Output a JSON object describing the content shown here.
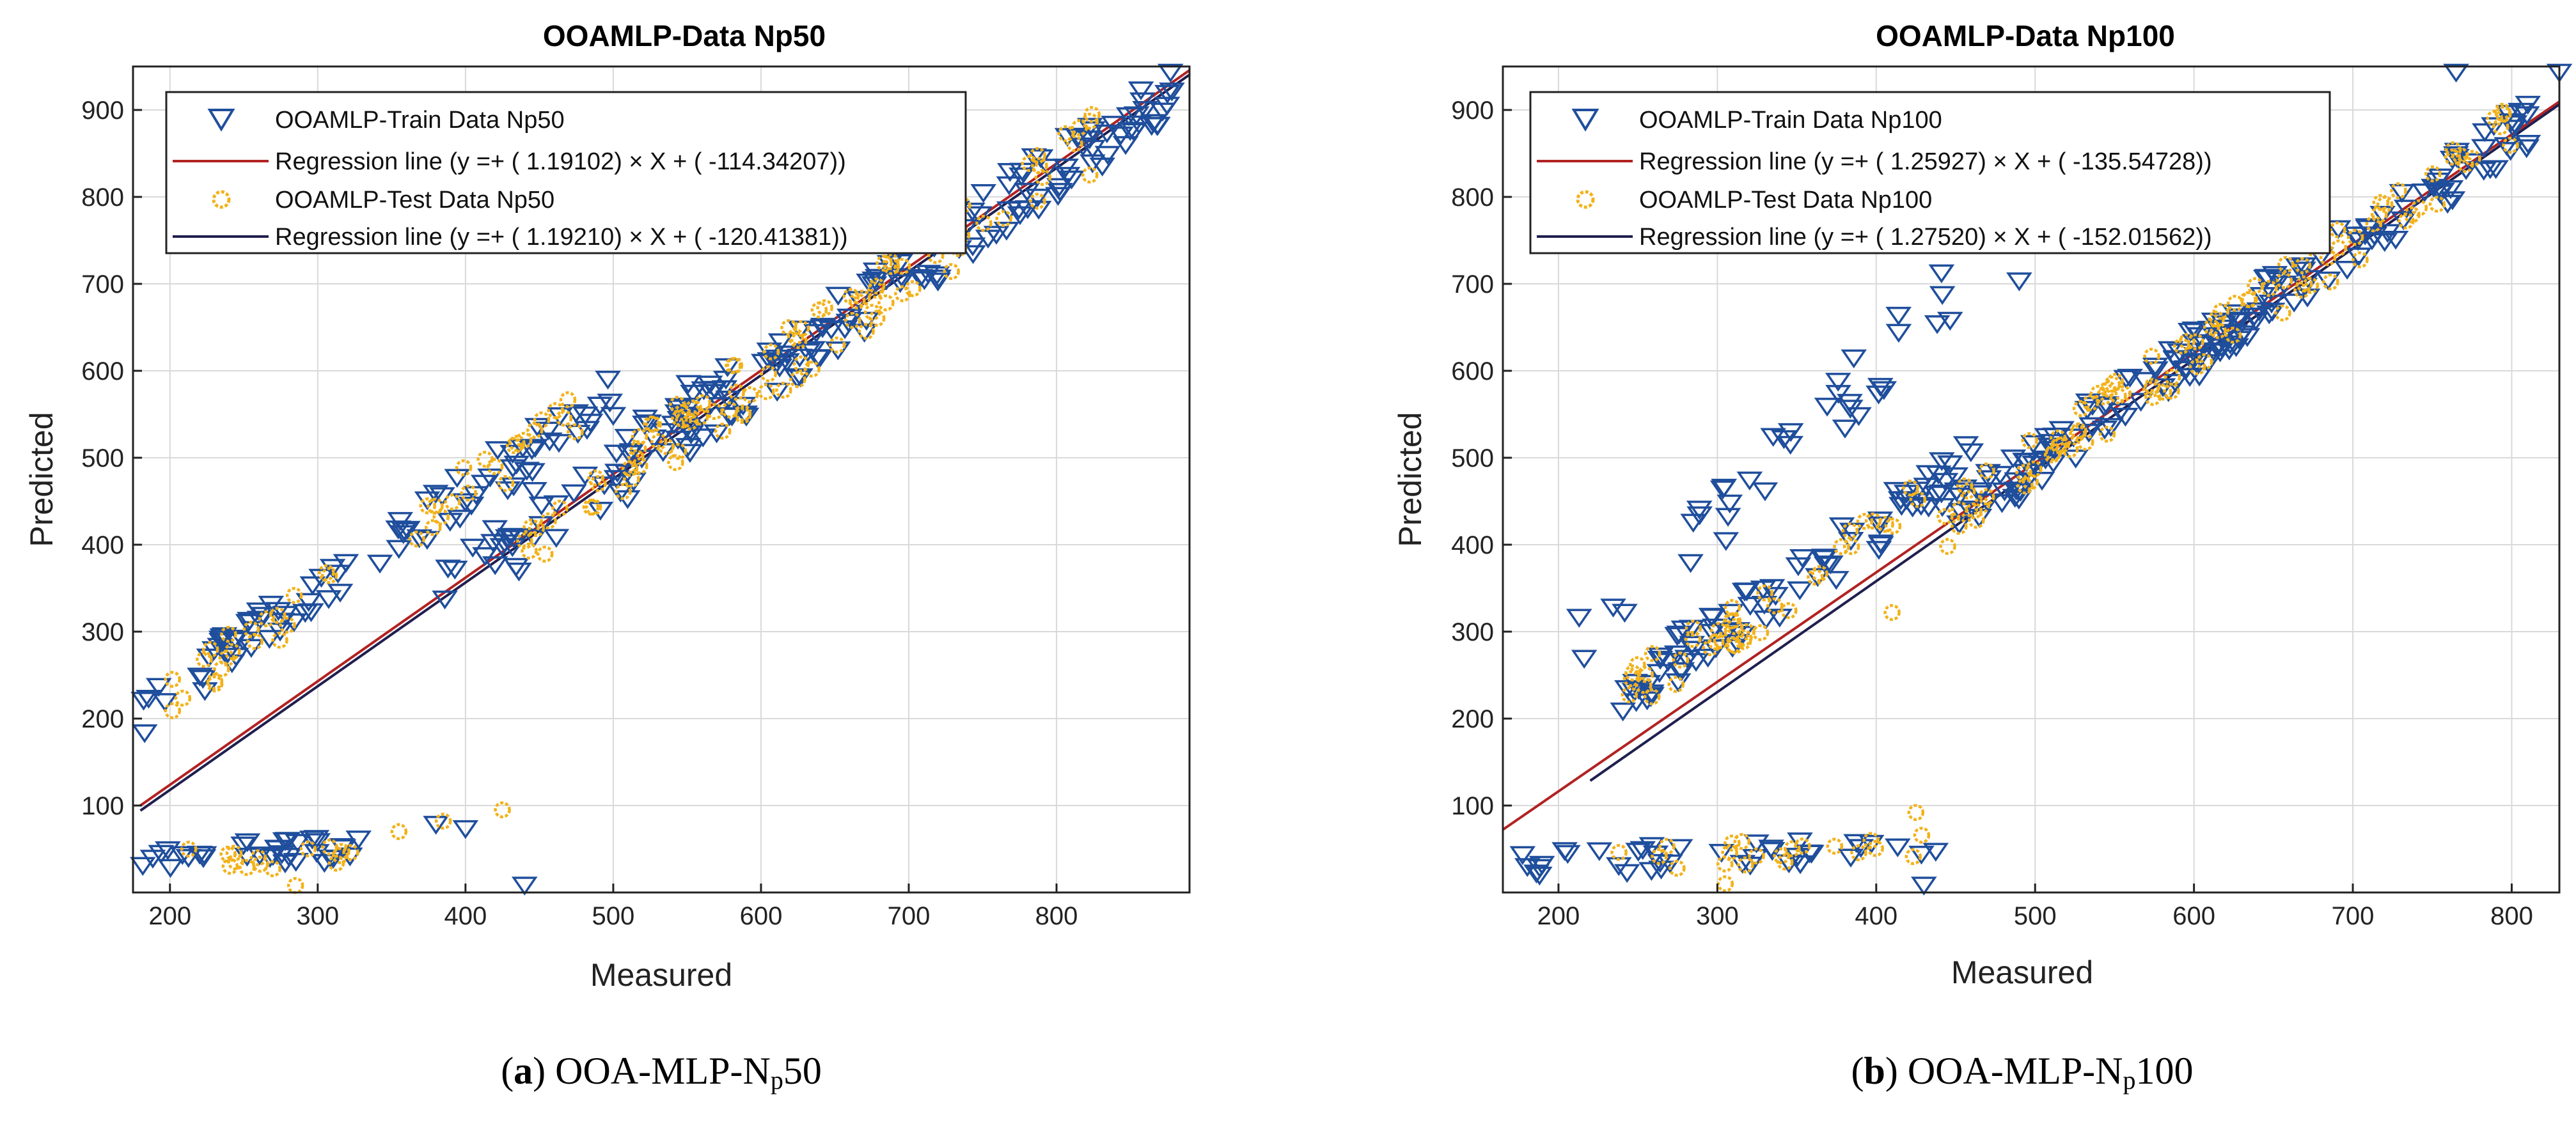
{
  "colors": {
    "train": "#1f4e9c",
    "test": "#f2b21b",
    "reg_train": "#b22222",
    "reg_test": "#1f1f4f",
    "grid": "#d9d9d9"
  },
  "captions": [
    {
      "tag": "a",
      "pre": " OOA-MLP-N",
      "sub": "p",
      "post": "50"
    },
    {
      "tag": "b",
      "pre": " OOA-MLP-N",
      "sub": "p",
      "post": "100"
    }
  ],
  "chart_data": [
    {
      "type": "scatter",
      "title": "OOAMLP-Data Np50",
      "xlabel": "Measured",
      "ylabel": "Predicted",
      "xlim": [
        175,
        890
      ],
      "ylim": [
        0,
        950
      ],
      "xticks": [
        200,
        300,
        400,
        500,
        600,
        700,
        800
      ],
      "yticks": [
        100,
        200,
        300,
        400,
        500,
        600,
        700,
        800,
        900
      ],
      "grid": true,
      "legend_position": "top-left",
      "legend": [
        "OOAMLP-Train Data Np50",
        "Regression line (y =+ ( 1.19102) × X + ( -114.34207))",
        "OOAMLP-Test Data Np50",
        "Regression line (y =+ ( 1.19210) × X + ( -120.41381))"
      ],
      "regression": [
        {
          "slope": 1.19102,
          "intercept": -114.34207,
          "x_range": [
            180,
            890
          ]
        },
        {
          "slope": 1.1921,
          "intercept": -120.41381,
          "x_range": [
            180,
            890
          ]
        }
      ],
      "clusters": {
        "train": [
          {
            "x0": 180,
            "x1": 320,
            "slope": 1.2,
            "intercept": -10,
            "n": 45,
            "spread": 25
          },
          {
            "x0": 340,
            "x1": 500,
            "slope": 1.2,
            "intercept": -20,
            "n": 45,
            "spread": 30
          },
          {
            "x0": 360,
            "x1": 580,
            "slope": 1.2,
            "intercept": -100,
            "n": 30,
            "spread": 30
          },
          {
            "x0": 420,
            "x1": 880,
            "slope": 1.19,
            "intercept": -118,
            "n": 160,
            "spread": 35
          },
          {
            "x0": 180,
            "x1": 330,
            "slope": 0.1,
            "intercept": 20,
            "n": 35,
            "spread": 15
          }
        ],
        "test": [
          {
            "x0": 190,
            "x1": 320,
            "slope": 1.2,
            "intercept": -15,
            "n": 20,
            "spread": 25
          },
          {
            "x0": 360,
            "x1": 480,
            "slope": 1.2,
            "intercept": -20,
            "n": 20,
            "spread": 30
          },
          {
            "x0": 440,
            "x1": 830,
            "slope": 1.19,
            "intercept": -120,
            "n": 90,
            "spread": 35
          },
          {
            "x0": 190,
            "x1": 330,
            "slope": 0.1,
            "intercept": 15,
            "n": 15,
            "spread": 15
          }
        ]
      },
      "points_train": [
        [
          380,
          80
        ],
        [
          400,
          75
        ],
        [
          440,
          10
        ],
        [
          300,
          60
        ]
      ],
      "points_test": [
        [
          355,
          70
        ],
        [
          385,
          82
        ],
        [
          425,
          95
        ],
        [
          285,
          8
        ]
      ]
    },
    {
      "type": "scatter",
      "title": "OOAMLP-Data Np100",
      "xlabel": "Measured",
      "ylabel": "Predicted",
      "xlim": [
        165,
        830
      ],
      "ylim": [
        0,
        950
      ],
      "xticks": [
        200,
        300,
        400,
        500,
        600,
        700,
        800
      ],
      "yticks": [
        100,
        200,
        300,
        400,
        500,
        600,
        700,
        800,
        900
      ],
      "grid": true,
      "legend_position": "top-left",
      "legend": [
        "OOAMLP-Train Data Np100",
        "Regression line (y =+ ( 1.25927) × X + ( -135.54728))",
        "OOAMLP-Test Data Np100",
        "Regression line (y =+ ( 1.27520) × X + ( -152.01562))"
      ],
      "regression": [
        {
          "slope": 1.25927,
          "intercept": -135.54728,
          "x_range": [
            165,
            830
          ]
        },
        {
          "slope": 1.2752,
          "intercept": -152.01562,
          "x_range": [
            220,
            830
          ]
        }
      ],
      "clusters": {
        "train": [
          {
            "x0": 210,
            "x1": 450,
            "slope": 1.8,
            "intercept": -115,
            "n": 35,
            "spread": 40
          },
          {
            "x0": 240,
            "x1": 460,
            "slope": 1.2,
            "intercept": -60,
            "n": 90,
            "spread": 30
          },
          {
            "x0": 450,
            "x1": 820,
            "slope": 1.26,
            "intercept": -135,
            "n": 170,
            "spread": 30
          },
          {
            "x0": 170,
            "x1": 440,
            "slope": 0.08,
            "intercept": 20,
            "n": 40,
            "spread": 15
          }
        ],
        "test": [
          {
            "x0": 240,
            "x1": 440,
            "slope": 1.2,
            "intercept": -65,
            "n": 40,
            "spread": 30
          },
          {
            "x0": 440,
            "x1": 800,
            "slope": 1.27,
            "intercept": -140,
            "n": 90,
            "spread": 30
          },
          {
            "x0": 220,
            "x1": 430,
            "slope": 0.08,
            "intercept": 20,
            "n": 20,
            "spread": 15
          }
        ]
      },
      "points_train": [
        [
          765,
          945
        ],
        [
          490,
          705
        ],
        [
          213,
          318
        ],
        [
          430,
          10
        ],
        [
          830,
          945
        ]
      ],
      "points_test": [
        [
          305,
          10
        ],
        [
          410,
          322
        ],
        [
          445,
          398
        ],
        [
          425,
          92
        ]
      ]
    }
  ]
}
